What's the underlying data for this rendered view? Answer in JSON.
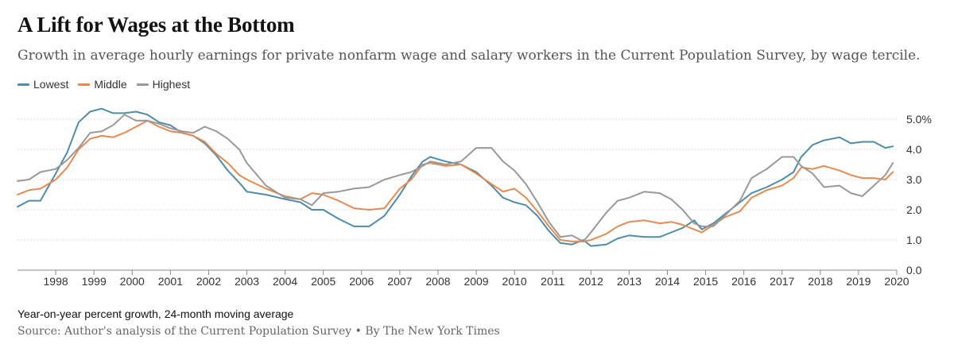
{
  "header": {
    "title": "A Lift for Wages at the Bottom",
    "subtitle": "Growth in average hourly earnings for private nonfarm wage and salary workers in the Current Population Survey, by wage tercile."
  },
  "footer": {
    "note": "Year-on-year percent growth, 24-month moving average",
    "source": "Source: Author's analysis of the Current Population Survey • By The New York Times"
  },
  "chart_data": {
    "type": "line",
    "title": "A Lift for Wages at the Bottom",
    "subtitle": "Growth in average hourly earnings for private nonfarm wage and salary workers in the Current Population Survey, by wage tercile.",
    "xlabel": "",
    "ylabel": "",
    "xlim": [
      1997.0,
      2020.0
    ],
    "ylim": [
      0.0,
      5.0
    ],
    "x_ticks": [
      1998,
      1999,
      2000,
      2001,
      2002,
      2003,
      2004,
      2005,
      2006,
      2007,
      2008,
      2009,
      2010,
      2011,
      2012,
      2013,
      2014,
      2015,
      2016,
      2017,
      2018,
      2019,
      2020
    ],
    "x_tick_labels": [
      "1998",
      "1999",
      "2000",
      "2001",
      "2002",
      "2003",
      "2004",
      "2005",
      "2006",
      "2007",
      "2008",
      "2009",
      "2010",
      "2011",
      "2012",
      "2013",
      "2014",
      "2015",
      "2016",
      "2017",
      "2018",
      "2019",
      "2020"
    ],
    "y_ticks": [
      0,
      1,
      2,
      3,
      4,
      5
    ],
    "y_tick_labels": [
      "0.0",
      "1.0",
      "2.0",
      "3.0",
      "4.0",
      "5.0%"
    ],
    "grid": "horizontal",
    "legend_position": "top-left",
    "series": [
      {
        "name": "Lowest",
        "color": "#4e8ca8",
        "points": [
          [
            1997.0,
            2.1
          ],
          [
            1997.3,
            2.3
          ],
          [
            1997.6,
            2.3
          ],
          [
            1998.0,
            3.2
          ],
          [
            1998.3,
            3.9
          ],
          [
            1998.6,
            4.9
          ],
          [
            1998.9,
            5.25
          ],
          [
            1999.2,
            5.35
          ],
          [
            1999.5,
            5.2
          ],
          [
            1999.8,
            5.2
          ],
          [
            2000.1,
            5.25
          ],
          [
            2000.4,
            5.15
          ],
          [
            2000.7,
            4.9
          ],
          [
            2001.0,
            4.8
          ],
          [
            2001.3,
            4.55
          ],
          [
            2001.6,
            4.45
          ],
          [
            2001.9,
            4.2
          ],
          [
            2002.2,
            3.8
          ],
          [
            2002.5,
            3.3
          ],
          [
            2002.8,
            2.9
          ],
          [
            2003.0,
            2.6
          ],
          [
            2003.5,
            2.5
          ],
          [
            2004.0,
            2.35
          ],
          [
            2004.4,
            2.25
          ],
          [
            2004.7,
            2.0
          ],
          [
            2005.0,
            2.0
          ],
          [
            2005.4,
            1.7
          ],
          [
            2005.8,
            1.45
          ],
          [
            2006.2,
            1.45
          ],
          [
            2006.6,
            1.8
          ],
          [
            2007.0,
            2.5
          ],
          [
            2007.3,
            3.1
          ],
          [
            2007.6,
            3.6
          ],
          [
            2007.8,
            3.75
          ],
          [
            2008.2,
            3.6
          ],
          [
            2008.6,
            3.5
          ],
          [
            2009.0,
            3.25
          ],
          [
            2009.4,
            2.8
          ],
          [
            2009.7,
            2.4
          ],
          [
            2010.0,
            2.25
          ],
          [
            2010.3,
            2.15
          ],
          [
            2010.6,
            1.8
          ],
          [
            2010.9,
            1.3
          ],
          [
            2011.2,
            0.9
          ],
          [
            2011.5,
            0.85
          ],
          [
            2011.8,
            1.0
          ],
          [
            2012.0,
            0.8
          ],
          [
            2012.4,
            0.85
          ],
          [
            2012.7,
            1.05
          ],
          [
            2013.0,
            1.15
          ],
          [
            2013.4,
            1.1
          ],
          [
            2013.8,
            1.1
          ],
          [
            2014.1,
            1.25
          ],
          [
            2014.4,
            1.4
          ],
          [
            2014.7,
            1.65
          ],
          [
            2014.9,
            1.35
          ],
          [
            2015.2,
            1.55
          ],
          [
            2015.5,
            1.85
          ],
          [
            2015.9,
            2.25
          ],
          [
            2016.2,
            2.55
          ],
          [
            2016.6,
            2.75
          ],
          [
            2017.0,
            3.0
          ],
          [
            2017.3,
            3.25
          ],
          [
            2017.5,
            3.75
          ],
          [
            2017.8,
            4.15
          ],
          [
            2018.1,
            4.3
          ],
          [
            2018.5,
            4.4
          ],
          [
            2018.8,
            4.2
          ],
          [
            2019.1,
            4.25
          ],
          [
            2019.4,
            4.25
          ],
          [
            2019.7,
            4.05
          ],
          [
            2019.9,
            4.1
          ]
        ]
      },
      {
        "name": "Middle",
        "color": "#e88a4f",
        "points": [
          [
            1997.0,
            2.5
          ],
          [
            1997.3,
            2.65
          ],
          [
            1997.6,
            2.7
          ],
          [
            1998.0,
            3.0
          ],
          [
            1998.3,
            3.4
          ],
          [
            1998.6,
            4.0
          ],
          [
            1998.9,
            4.35
          ],
          [
            1999.2,
            4.45
          ],
          [
            1999.5,
            4.4
          ],
          [
            1999.8,
            4.55
          ],
          [
            2000.1,
            4.75
          ],
          [
            2000.4,
            4.95
          ],
          [
            2000.7,
            4.75
          ],
          [
            2001.0,
            4.6
          ],
          [
            2001.3,
            4.55
          ],
          [
            2001.6,
            4.45
          ],
          [
            2001.9,
            4.25
          ],
          [
            2002.2,
            3.85
          ],
          [
            2002.5,
            3.55
          ],
          [
            2002.8,
            3.15
          ],
          [
            2003.0,
            3.0
          ],
          [
            2003.5,
            2.7
          ],
          [
            2004.0,
            2.45
          ],
          [
            2004.4,
            2.35
          ],
          [
            2004.7,
            2.55
          ],
          [
            2005.0,
            2.5
          ],
          [
            2005.4,
            2.3
          ],
          [
            2005.8,
            2.05
          ],
          [
            2006.2,
            2.0
          ],
          [
            2006.6,
            2.05
          ],
          [
            2007.0,
            2.7
          ],
          [
            2007.3,
            3.0
          ],
          [
            2007.6,
            3.5
          ],
          [
            2007.8,
            3.55
          ],
          [
            2008.2,
            3.45
          ],
          [
            2008.6,
            3.5
          ],
          [
            2009.0,
            3.2
          ],
          [
            2009.4,
            2.85
          ],
          [
            2009.7,
            2.6
          ],
          [
            2010.0,
            2.7
          ],
          [
            2010.3,
            2.4
          ],
          [
            2010.6,
            1.95
          ],
          [
            2010.9,
            1.45
          ],
          [
            2011.2,
            1.0
          ],
          [
            2011.5,
            0.95
          ],
          [
            2011.8,
            0.95
          ],
          [
            2012.0,
            1.0
          ],
          [
            2012.4,
            1.2
          ],
          [
            2012.7,
            1.45
          ],
          [
            2013.0,
            1.6
          ],
          [
            2013.4,
            1.65
          ],
          [
            2013.8,
            1.55
          ],
          [
            2014.1,
            1.6
          ],
          [
            2014.4,
            1.5
          ],
          [
            2014.7,
            1.35
          ],
          [
            2014.9,
            1.25
          ],
          [
            2015.2,
            1.5
          ],
          [
            2015.5,
            1.75
          ],
          [
            2015.9,
            1.95
          ],
          [
            2016.2,
            2.4
          ],
          [
            2016.6,
            2.65
          ],
          [
            2017.0,
            2.8
          ],
          [
            2017.3,
            3.05
          ],
          [
            2017.5,
            3.4
          ],
          [
            2017.8,
            3.35
          ],
          [
            2018.1,
            3.45
          ],
          [
            2018.5,
            3.3
          ],
          [
            2018.8,
            3.15
          ],
          [
            2019.1,
            3.05
          ],
          [
            2019.4,
            3.05
          ],
          [
            2019.7,
            3.0
          ],
          [
            2019.9,
            3.25
          ]
        ]
      },
      {
        "name": "Highest",
        "color": "#999999",
        "points": [
          [
            1997.0,
            2.95
          ],
          [
            1997.3,
            3.0
          ],
          [
            1997.6,
            3.25
          ],
          [
            1998.0,
            3.35
          ],
          [
            1998.3,
            3.65
          ],
          [
            1998.6,
            4.05
          ],
          [
            1998.9,
            4.55
          ],
          [
            1999.2,
            4.6
          ],
          [
            1999.5,
            4.8
          ],
          [
            1999.8,
            5.15
          ],
          [
            2000.1,
            4.95
          ],
          [
            2000.4,
            4.95
          ],
          [
            2000.7,
            4.85
          ],
          [
            2001.0,
            4.7
          ],
          [
            2001.3,
            4.6
          ],
          [
            2001.6,
            4.55
          ],
          [
            2001.9,
            4.75
          ],
          [
            2002.2,
            4.6
          ],
          [
            2002.5,
            4.35
          ],
          [
            2002.8,
            4.0
          ],
          [
            2003.0,
            3.55
          ],
          [
            2003.5,
            2.8
          ],
          [
            2004.0,
            2.4
          ],
          [
            2004.4,
            2.35
          ],
          [
            2004.7,
            2.15
          ],
          [
            2005.0,
            2.55
          ],
          [
            2005.4,
            2.6
          ],
          [
            2005.8,
            2.7
          ],
          [
            2006.2,
            2.75
          ],
          [
            2006.6,
            3.0
          ],
          [
            2007.0,
            3.15
          ],
          [
            2007.3,
            3.25
          ],
          [
            2007.6,
            3.45
          ],
          [
            2007.8,
            3.6
          ],
          [
            2008.2,
            3.5
          ],
          [
            2008.6,
            3.6
          ],
          [
            2009.0,
            4.05
          ],
          [
            2009.4,
            4.05
          ],
          [
            2009.7,
            3.6
          ],
          [
            2010.0,
            3.3
          ],
          [
            2010.3,
            2.85
          ],
          [
            2010.6,
            2.25
          ],
          [
            2010.9,
            1.6
          ],
          [
            2011.2,
            1.1
          ],
          [
            2011.5,
            1.15
          ],
          [
            2011.8,
            0.95
          ],
          [
            2012.0,
            1.25
          ],
          [
            2012.4,
            1.9
          ],
          [
            2012.7,
            2.3
          ],
          [
            2013.0,
            2.4
          ],
          [
            2013.4,
            2.6
          ],
          [
            2013.8,
            2.55
          ],
          [
            2014.1,
            2.35
          ],
          [
            2014.4,
            2.0
          ],
          [
            2014.7,
            1.55
          ],
          [
            2014.9,
            1.45
          ],
          [
            2015.2,
            1.45
          ],
          [
            2015.5,
            1.8
          ],
          [
            2015.9,
            2.3
          ],
          [
            2016.2,
            3.05
          ],
          [
            2016.6,
            3.35
          ],
          [
            2017.0,
            3.75
          ],
          [
            2017.3,
            3.75
          ],
          [
            2017.5,
            3.45
          ],
          [
            2017.8,
            3.2
          ],
          [
            2018.1,
            2.75
          ],
          [
            2018.5,
            2.8
          ],
          [
            2018.8,
            2.55
          ],
          [
            2019.1,
            2.45
          ],
          [
            2019.4,
            2.8
          ],
          [
            2019.7,
            3.15
          ],
          [
            2019.9,
            3.55
          ]
        ]
      }
    ]
  }
}
